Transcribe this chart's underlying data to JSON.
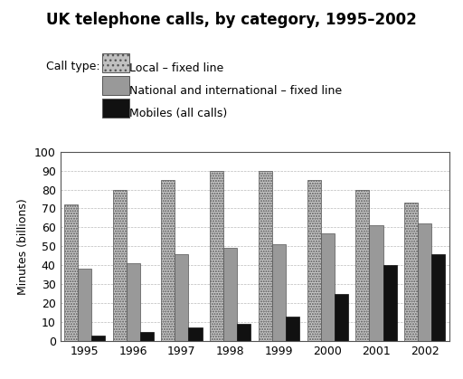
{
  "title": "UK telephone calls, by category, 1995–2002",
  "ylabel": "Minutes (billions)",
  "years": [
    1995,
    1996,
    1997,
    1998,
    1999,
    2000,
    2001,
    2002
  ],
  "local_fixed": [
    72,
    80,
    85,
    90,
    90,
    85,
    80,
    73
  ],
  "national_fixed": [
    38,
    41,
    46,
    49,
    51,
    57,
    61,
    62
  ],
  "mobiles": [
    3,
    5,
    7,
    9,
    13,
    25,
    40,
    46
  ],
  "ylim": [
    0,
    100
  ],
  "yticks": [
    0,
    10,
    20,
    30,
    40,
    50,
    60,
    70,
    80,
    90,
    100
  ],
  "legend_label_local": "Local – fixed line",
  "legend_label_national": "National and international – fixed line",
  "legend_label_mobile": "Mobiles (all calls)",
  "legend_prefix": "Call type:",
  "bar_width": 0.28,
  "title_fontsize": 12,
  "axis_fontsize": 9,
  "legend_fontsize": 9
}
